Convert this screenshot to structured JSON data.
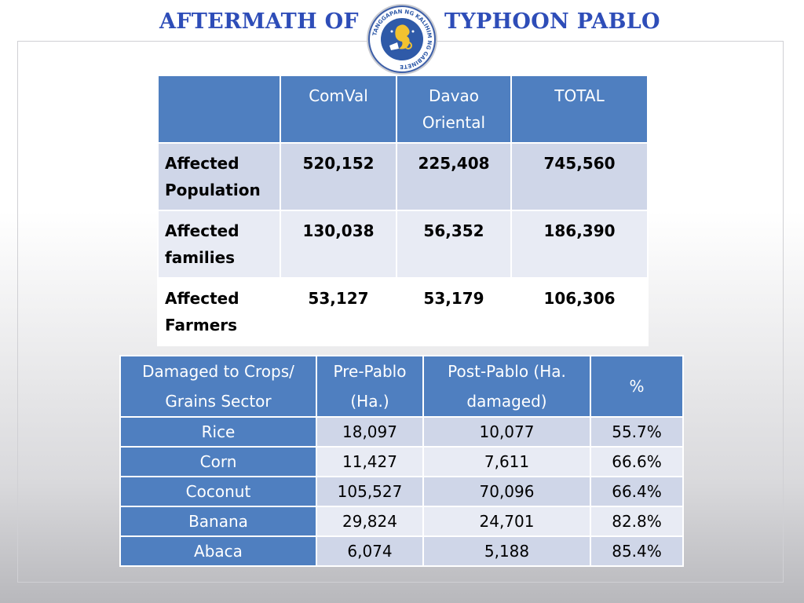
{
  "title": {
    "left": "AFTERMATH  OF",
    "right": "TYPHOON PABLO"
  },
  "seal": {
    "ring_text": "TANGGAPAN NG KALIHIM NG GABINETE"
  },
  "table1": {
    "headers": [
      "",
      "ComVal",
      "Davao Oriental",
      "TOTAL"
    ],
    "rows": [
      {
        "label": "Affected Population",
        "values": [
          "520,152",
          "225,408",
          "745,560"
        ]
      },
      {
        "label": "Affected families",
        "values": [
          "130,038",
          "56,352",
          "186,390"
        ]
      },
      {
        "label": "Affected Farmers",
        "values": [
          "53,127",
          "53,179",
          "106,306"
        ]
      }
    ]
  },
  "table2": {
    "headers": [
      "Damaged to Crops/ Grains Sector",
      "Pre-Pablo (Ha.)",
      "Post-Pablo (Ha. damaged)",
      "%"
    ],
    "rows": [
      {
        "crop": "Rice",
        "pre": "18,097",
        "post": "10,077",
        "pct": "55.7%"
      },
      {
        "crop": "Corn",
        "pre": "11,427",
        "post": "7,611",
        "pct": "66.6%"
      },
      {
        "crop": "Coconut",
        "pre": "105,527",
        "post": "70,096",
        "pct": "66.4%"
      },
      {
        "crop": "Banana",
        "pre": "29,824",
        "post": "24,701",
        "pct": "82.8%"
      },
      {
        "crop": "Abaca",
        "pre": "6,074",
        "post": "5,188",
        "pct": "85.4%"
      }
    ]
  },
  "colors": {
    "title": "#2e4db8",
    "header": "#4f7fc0",
    "row_dark": "#cfd6e8",
    "row_light": "#e8ebf4"
  }
}
